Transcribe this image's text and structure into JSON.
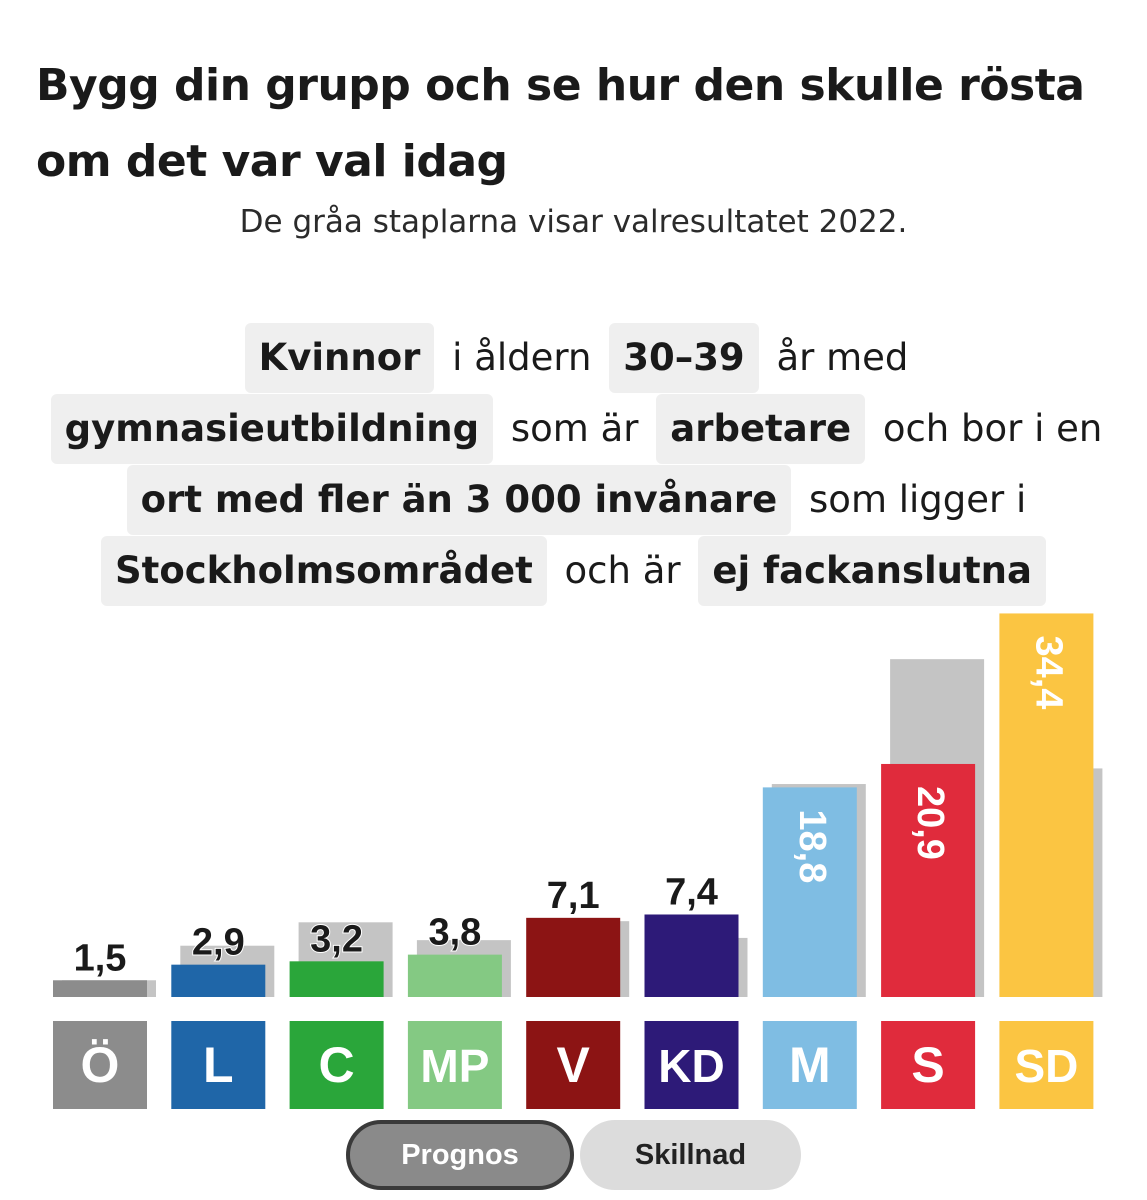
{
  "title": "Bygg din grupp och se hur den skulle rösta om det var val idag",
  "subtitle": "De gråa staplarna visar valresultatet 2022.",
  "sentence": {
    "gender": "Kvinnor",
    "t1": "i åldern",
    "age": "30–39",
    "t2": "år med",
    "education": "gymnasieutbildning",
    "t3": "som är",
    "occupation": "arbetare",
    "t4": "och bor i en",
    "settlement": "ort med fler än 3 000 invånare",
    "t5": "som ligger i",
    "region": "Stockholmsområdet",
    "t6": "och är",
    "union": "ej fackanslutna"
  },
  "chart_data": {
    "type": "bar",
    "categories": [
      "Ö",
      "L",
      "C",
      "MP",
      "V",
      "KD",
      "M",
      "S",
      "SD"
    ],
    "series": [
      {
        "values": [
          1.5,
          2.9,
          3.2,
          3.8,
          7.1,
          7.4,
          18.8,
          20.9,
          34.4
        ]
      },
      {
        "values": [
          1.5,
          4.6,
          6.7,
          5.1,
          6.8,
          5.3,
          19.1,
          30.3,
          20.5
        ]
      }
    ],
    "value_labels": [
      "1,5",
      "2,9",
      "3,2",
      "3,8",
      "7,1",
      "7,4",
      "18,8",
      "20,9",
      "34,4"
    ],
    "colors": [
      "#8c8c8c",
      "#1f66a8",
      "#2aa63a",
      "#84c983",
      "#8c1414",
      "#2d1a78",
      "#7fbde3",
      "#e02b3c",
      "#fbc542"
    ],
    "result_2022_color": "#c4c4c4",
    "ylim": [
      0,
      36
    ]
  },
  "toggle": {
    "active": "Prognos",
    "inactive": "Skillnad"
  }
}
